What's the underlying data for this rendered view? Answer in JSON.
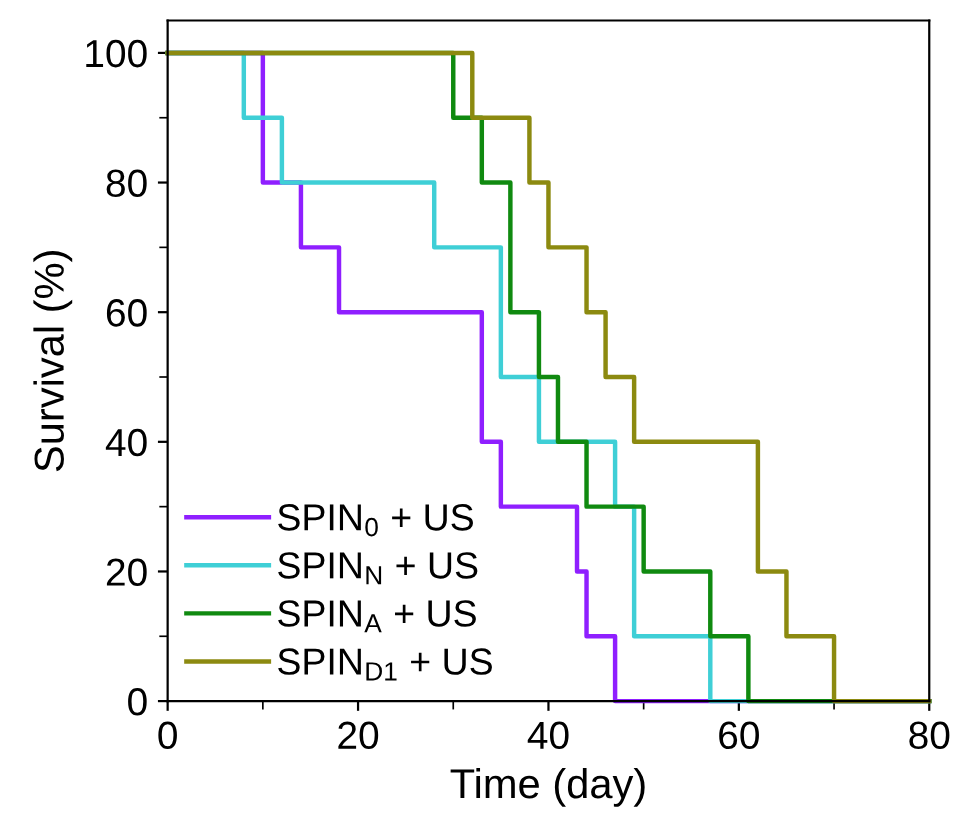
{
  "chart_data": {
    "type": "step",
    "xlabel": "Time (day)",
    "ylabel": "Survival (%)",
    "xlim": [
      0,
      80
    ],
    "ylim": [
      0,
      105
    ],
    "xticks": [
      0,
      20,
      40,
      60,
      80
    ],
    "yticks": [
      0,
      20,
      40,
      60,
      80,
      100
    ],
    "grid": false,
    "legend": "bottom left",
    "series": [
      {
        "name": "SPIN$_{0}$ + US",
        "color": "#8f1fff",
        "x": [
          0,
          10,
          14,
          18,
          33,
          35,
          43,
          44,
          47,
          80
        ],
        "values": [
          100,
          80,
          70,
          60,
          40,
          30,
          20,
          10,
          0,
          0
        ]
      },
      {
        "name": "SPIN$_{N}$ + US",
        "color": "#3fcfd6",
        "x": [
          0,
          8,
          12,
          28,
          35,
          39,
          47,
          49,
          57,
          80
        ],
        "values": [
          100,
          90,
          80,
          70,
          50,
          40,
          30,
          10,
          0,
          0
        ]
      },
      {
        "name": "SPIN$_{A}$ + US",
        "color": "#108a10",
        "x": [
          0,
          30,
          33,
          36,
          39,
          41,
          44,
          50,
          57,
          61,
          80
        ],
        "values": [
          100,
          90,
          80,
          60,
          50,
          40,
          30,
          20,
          10,
          0,
          0
        ]
      },
      {
        "name": "SPIN$_{D1}$ + US",
        "color": "#8c8a10",
        "x": [
          0,
          32,
          38,
          40,
          44,
          46,
          49,
          62,
          65,
          70,
          80
        ],
        "values": [
          100,
          90,
          80,
          70,
          60,
          50,
          40,
          20,
          10,
          0,
          0
        ]
      }
    ]
  }
}
